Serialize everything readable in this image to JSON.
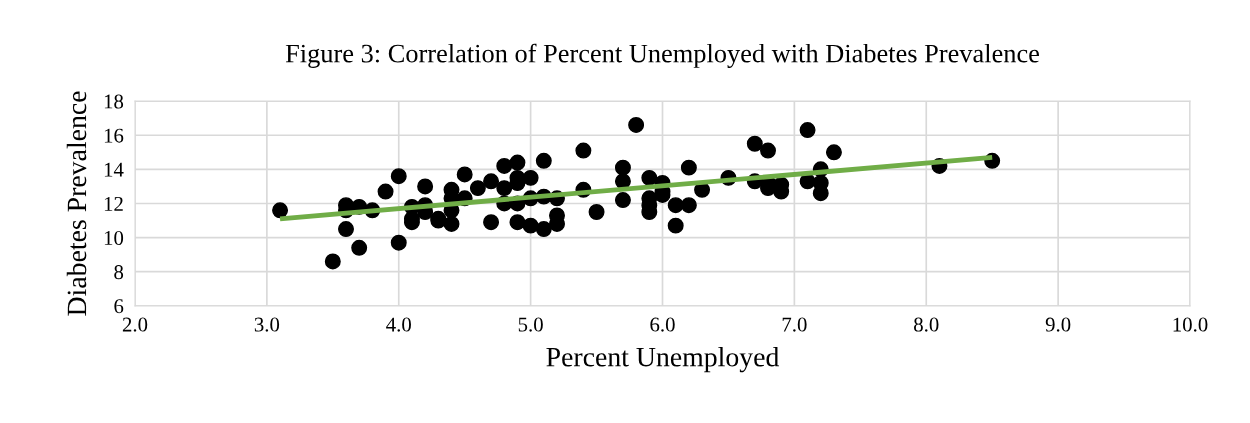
{
  "chart_data": {
    "type": "scatter",
    "title": "Figure 3: Correlation of Percent Unemployed with Diabetes Prevalence",
    "xlabel": "Percent Unemployed",
    "ylabel": "Diabetes Prevalence",
    "xlim": [
      2.0,
      10.0
    ],
    "xticks": [
      {
        "value": 2,
        "label": "2.0"
      },
      {
        "value": 3,
        "label": "3.0"
      },
      {
        "value": 4,
        "label": "4.0"
      },
      {
        "value": 5,
        "label": "5.0"
      },
      {
        "value": 6,
        "label": "6.0"
      },
      {
        "value": 7,
        "label": "7.0"
      },
      {
        "value": 8,
        "label": "8.0"
      },
      {
        "value": 9,
        "label": "9.0"
      },
      {
        "value": 10,
        "label": "10.0"
      }
    ],
    "ylim": [
      6,
      18
    ],
    "yticks": [
      6,
      8,
      10,
      12,
      14,
      16,
      18
    ],
    "grid": true,
    "legend": false,
    "series": [
      {
        "color": "#000000",
        "marker": "circle",
        "x": [
          3.1,
          3.5,
          3.6,
          3.6,
          3.6,
          3.7,
          3.7,
          3.8,
          3.9,
          4.0,
          4.0,
          4.1,
          4.1,
          4.1,
          4.2,
          4.2,
          4.2,
          4.3,
          4.3,
          4.4,
          4.4,
          4.4,
          4.4,
          4.5,
          4.5,
          4.6,
          4.7,
          4.7,
          4.8,
          4.8,
          4.8,
          4.9,
          4.9,
          4.9,
          4.9,
          4.9,
          5.0,
          5.0,
          5.0,
          5.1,
          5.1,
          5.1,
          5.2,
          5.2,
          5.2,
          5.4,
          5.4,
          5.5,
          5.7,
          5.7,
          5.7,
          5.8,
          5.9,
          5.9,
          5.9,
          5.9,
          6.0,
          6.0,
          6.0,
          6.1,
          6.1,
          6.2,
          6.2,
          6.3,
          6.5,
          6.7,
          6.7,
          6.8,
          6.8,
          6.8,
          6.9,
          6.9,
          7.1,
          7.1,
          7.2,
          7.2,
          7.2,
          7.3,
          8.1,
          8.5
        ],
        "values": [
          11.6,
          8.6,
          11.9,
          11.6,
          10.5,
          11.8,
          9.4,
          11.6,
          12.7,
          13.6,
          9.7,
          11.8,
          11.1,
          10.9,
          13.0,
          11.9,
          11.5,
          11.1,
          11.0,
          12.8,
          12.3,
          11.6,
          10.8,
          13.7,
          12.3,
          12.9,
          13.3,
          10.9,
          14.2,
          12.9,
          12.0,
          14.4,
          13.5,
          13.2,
          12.0,
          10.9,
          13.5,
          12.3,
          10.7,
          14.5,
          12.4,
          10.5,
          12.3,
          11.3,
          10.8,
          15.1,
          12.8,
          11.5,
          14.1,
          13.3,
          12.2,
          16.6,
          13.5,
          12.3,
          11.9,
          11.5,
          13.2,
          12.7,
          12.5,
          11.9,
          10.7,
          14.1,
          11.9,
          12.8,
          13.5,
          15.5,
          13.3,
          15.1,
          13.2,
          12.9,
          13.1,
          12.7,
          16.3,
          13.3,
          14.0,
          13.2,
          12.6,
          15.0,
          14.2,
          14.5
        ]
      },
      {
        "type": "line",
        "color": "#70ad47",
        "x": [
          3.1,
          8.5
        ],
        "values": [
          11.1,
          14.7
        ],
        "marker": "none",
        "line_style": "solid"
      }
    ]
  }
}
